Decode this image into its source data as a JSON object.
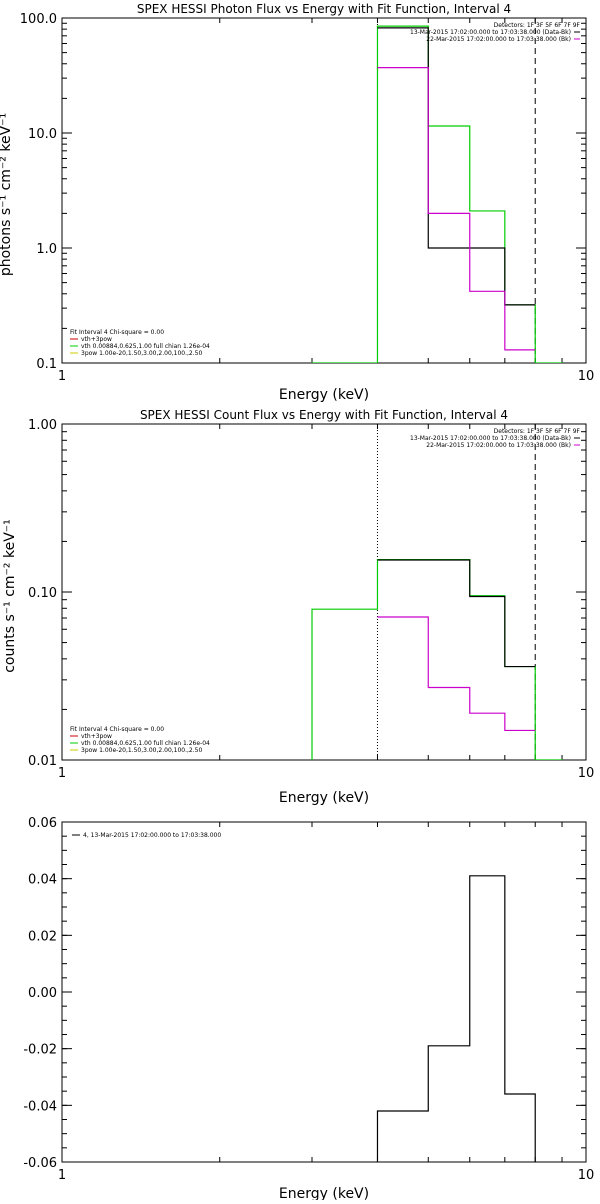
{
  "chart_data": [
    {
      "type": "line",
      "title": "SPEX HESSI Photon Flux vs Energy with Fit Function, Interval 4",
      "xlabel": "Energy (keV)",
      "ylabel": "photons s⁻¹ cm⁻² keV⁻¹",
      "xscale": "log",
      "yscale": "log",
      "xlim": [
        1,
        10
      ],
      "ylim": [
        0.1,
        100
      ],
      "x_ticks": [
        {
          "v": 1,
          "label": "1"
        },
        {
          "v": 10,
          "label": "10"
        }
      ],
      "y_ticks": [
        {
          "v": 100,
          "label": "100.0"
        },
        {
          "v": 10,
          "label": "10.0"
        },
        {
          "v": 1,
          "label": "1.0"
        },
        {
          "v": 0.1,
          "label": "0.1"
        }
      ],
      "legend_top": {
        "placement": "top-right",
        "lines": [
          {
            "text": "Detectors: 1F 3F 5F 6F 7F 9F",
            "color": ""
          },
          {
            "text": "13-Mar-2015 17:02:00.000 to 17:03:38.000 (Data-Bk)",
            "color": "#000000"
          },
          {
            "text": "22-Mar-2015 17:02:00.000 to 17:03:38.000 (Bk)",
            "color": "#cc00cc"
          }
        ]
      },
      "legend_bottom": {
        "placement": "bottom-left",
        "lines": [
          {
            "text": "Fit Interval 4   Chi-square = 0.00",
            "color": ""
          },
          {
            "text": "vth+3pow",
            "color": "#cc0000"
          },
          {
            "text": "vth 0.00884,0.625,1.00  full chian 1.26e-04",
            "color": "#00cc00"
          },
          {
            "text": "3pow 1.00e-20,1.50,3.00,2.00,100.,2.50",
            "color": "#cccc00"
          }
        ]
      },
      "series": [
        {
          "color": "#00cc00",
          "role": "fit",
          "edges": [
            3.0,
            4.0,
            5.0,
            6.0,
            7.0,
            8.0,
            9.0
          ],
          "values": [
            0.1,
            85,
            11.5,
            2.1,
            0.32,
            0.1
          ]
        },
        {
          "color": "#000000",
          "role": "data",
          "edges": [
            4.0,
            5.0,
            7.0,
            8.0
          ],
          "values": [
            82,
            1,
            0.32
          ]
        },
        {
          "color": "#cc00cc",
          "role": "background",
          "edges": [
            4.0,
            5.0,
            6.0,
            7.0,
            8.0
          ],
          "values": [
            37,
            2.0,
            0.42,
            0.13
          ]
        }
      ],
      "vlines": [
        {
          "x": 4.0,
          "color": "#000000",
          "style": "dotted"
        },
        {
          "x": 8.0,
          "color": "#000000",
          "style": "dashed"
        }
      ]
    },
    {
      "type": "line",
      "title": "SPEX HESSI Count Flux vs Energy with Fit Function, Interval 4",
      "xlabel": "Energy (keV)",
      "ylabel": "counts s⁻¹ cm⁻² keV⁻¹",
      "xscale": "log",
      "yscale": "log",
      "xlim": [
        1,
        10
      ],
      "ylim": [
        0.01,
        1
      ],
      "x_ticks": [
        {
          "v": 1,
          "label": "1"
        },
        {
          "v": 10,
          "label": "10"
        }
      ],
      "y_ticks": [
        {
          "v": 1,
          "label": "1.00"
        },
        {
          "v": 0.1,
          "label": "0.10"
        },
        {
          "v": 0.01,
          "label": "0.01"
        }
      ],
      "legend_top": {
        "placement": "top-right",
        "lines": [
          {
            "text": "Detectors: 1F 3F 5F 6F 7F 9F",
            "color": ""
          },
          {
            "text": "13-Mar-2015 17:02:00.000 to 17:03:38.000 (Data-Bk)",
            "color": "#000000"
          },
          {
            "text": "22-Mar-2015 17:02:00.000 to 17:03:38.000 (Bk)",
            "color": "#cc00cc"
          }
        ]
      },
      "legend_bottom": {
        "placement": "bottom-left",
        "lines": [
          {
            "text": "Fit Interval 4   Chi-square = 0.00",
            "color": ""
          },
          {
            "text": "vth+3pow",
            "color": "#cc0000"
          },
          {
            "text": "vth 0.00884,0.625,1.00  full chian 1.26e-04",
            "color": "#00cc00"
          },
          {
            "text": "3pow 1.00e-20,1.50,3.00,2.00,100.,2.50",
            "color": "#cccc00"
          }
        ]
      },
      "series": [
        {
          "color": "#00cc00",
          "role": "fit",
          "edges": [
            3.0,
            4.0,
            5.0,
            6.0,
            7.0,
            8.0,
            9.0
          ],
          "values": [
            0.079,
            0.156,
            0.156,
            0.095,
            0.036,
            0.01
          ]
        },
        {
          "color": "#000000",
          "role": "data",
          "edges": [
            4.0,
            5.0,
            6.0,
            7.0,
            8.0
          ],
          "values": [
            0.155,
            0.155,
            0.094,
            0.036
          ]
        },
        {
          "color": "#cc00cc",
          "role": "background",
          "edges": [
            4.0,
            5.0,
            6.0,
            7.0,
            8.0
          ],
          "values": [
            0.071,
            0.027,
            0.019,
            0.015
          ]
        }
      ],
      "vlines": [
        {
          "x": 4.0,
          "color": "#000000",
          "style": "dotted"
        },
        {
          "x": 8.0,
          "color": "#000000",
          "style": "dashed"
        }
      ]
    },
    {
      "type": "line",
      "title": "",
      "xlabel": "Energy (keV)",
      "ylabel": "",
      "xscale": "log",
      "yscale": "linear",
      "xlim": [
        1,
        10
      ],
      "ylim": [
        -0.06,
        0.06
      ],
      "x_ticks": [
        {
          "v": 1,
          "label": "1"
        },
        {
          "v": 10,
          "label": "10"
        }
      ],
      "y_ticks": [
        {
          "v": 0.06,
          "label": "0.06"
        },
        {
          "v": 0.04,
          "label": "0.04"
        },
        {
          "v": 0.02,
          "label": "0.02"
        },
        {
          "v": 0.0,
          "label": "0.00"
        },
        {
          "v": -0.02,
          "label": "-0.02"
        },
        {
          "v": -0.04,
          "label": "-0.04"
        },
        {
          "v": -0.06,
          "label": "-0.06"
        }
      ],
      "legend_top": {
        "placement": "top-left",
        "lines": [
          {
            "text": "4, 13-Mar-2015 17:02:00.000 to 17:03:38.000",
            "color": "#000000"
          }
        ]
      },
      "series": [
        {
          "color": "#000000",
          "role": "residual",
          "edges": [
            4.0,
            5.0,
            6.0,
            7.0,
            8.0
          ],
          "values": [
            -0.042,
            -0.019,
            0.041,
            -0.036
          ],
          "close_bottom": true
        }
      ],
      "vlines": []
    }
  ]
}
